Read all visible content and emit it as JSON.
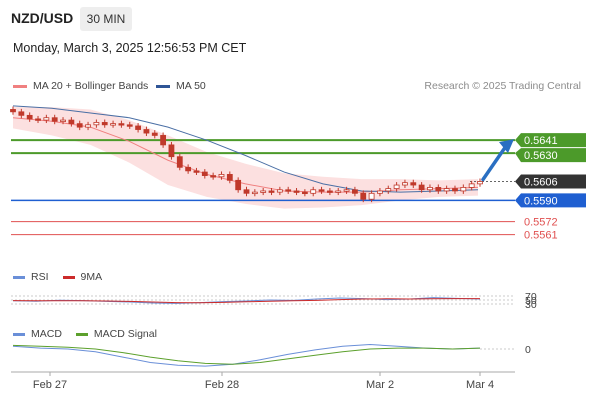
{
  "header": {
    "symbol": "NZD/USD",
    "timeframe": "30 MIN",
    "datetime": "Monday, March 3, 2025 12:56:53 PM CET"
  },
  "legend": {
    "ma20_bb": "MA 20 + Bollinger Bands",
    "ma50": "MA 50",
    "copyright": "Research © 2025 Trading Central"
  },
  "colors": {
    "candle": "#c0392b",
    "bollinger": "#fbd5d5",
    "ma20": "#f08080",
    "ma50": "#4a6fa5",
    "resistance": "#4c9a2a",
    "support_blue": "#1f5fd1",
    "support_red": "#e05050",
    "current": "#333333",
    "rsi": "#6a8fd8",
    "rsi_ma": "#cc2b2b",
    "macd": "#6a8fd8",
    "macd_signal": "#5ca02c",
    "arrow": "#2a6fc2"
  },
  "chart_data": [
    {
      "type": "candlestick",
      "title": "NZD/USD 30 MIN",
      "x_labels": [
        "Feb 27",
        "Feb 28",
        "Mar 2",
        "Mar 4"
      ],
      "price_range": [
        0.5548,
        0.5675
      ],
      "levels": [
        {
          "label": "0.5641",
          "value": 0.5641,
          "kind": "resistance"
        },
        {
          "label": "0.5630",
          "value": 0.563,
          "kind": "resistance"
        },
        {
          "label": "0.5606",
          "value": 0.5606,
          "kind": "current"
        },
        {
          "label": "0.5590",
          "value": 0.559,
          "kind": "pivot"
        },
        {
          "label": "0.5572",
          "value": 0.5572,
          "kind": "support"
        },
        {
          "label": "0.5561",
          "value": 0.5561,
          "kind": "support"
        }
      ],
      "close": [
        0.5665,
        0.5662,
        0.5659,
        0.5658,
        0.566,
        0.5657,
        0.5658,
        0.5655,
        0.5652,
        0.5654,
        0.5656,
        0.5654,
        0.5655,
        0.5654,
        0.5653,
        0.565,
        0.5647,
        0.5645,
        0.5637,
        0.5627,
        0.5618,
        0.5615,
        0.5614,
        0.5611,
        0.561,
        0.5612,
        0.5607,
        0.5599,
        0.5596,
        0.5597,
        0.5598,
        0.5597,
        0.5599,
        0.5598,
        0.5597,
        0.5596,
        0.5599,
        0.5598,
        0.5597,
        0.5598,
        0.5599,
        0.5596,
        0.5591,
        0.5596,
        0.5598,
        0.56,
        0.5603,
        0.5605,
        0.5603,
        0.5599,
        0.5601,
        0.5598,
        0.56,
        0.5598,
        0.5601,
        0.5604,
        0.5606
      ],
      "series": [
        {
          "name": "MA 50",
          "values": [
            0.567,
            0.5668,
            0.5664,
            0.566,
            0.5652,
            0.5641,
            0.5628,
            0.5614,
            0.5604,
            0.5598,
            0.5597,
            0.5598,
            0.5599
          ]
        },
        {
          "name": "MA 20",
          "values": [
            0.566,
            0.5657,
            0.5652,
            0.564,
            0.5624,
            0.5612,
            0.5604,
            0.5598,
            0.5597,
            0.5597,
            0.5599,
            0.56,
            0.5601
          ]
        }
      ]
    },
    {
      "type": "line",
      "title": "RSI",
      "y_ticks": [
        70,
        50,
        30
      ],
      "series": [
        {
          "name": "RSI",
          "values": [
            46,
            44,
            49,
            47,
            43,
            40,
            35,
            33,
            37,
            42,
            45,
            50,
            48,
            55,
            60,
            57,
            52,
            55,
            62,
            58,
            55
          ]
        },
        {
          "name": "9MA",
          "values": [
            47,
            46,
            46,
            46,
            45,
            43,
            40,
            37,
            36,
            38,
            41,
            44,
            46,
            48,
            52,
            55,
            56,
            55,
            56,
            57,
            57
          ]
        }
      ]
    },
    {
      "type": "line",
      "title": "MACD",
      "y_ticks": [
        0
      ],
      "series": [
        {
          "name": "MACD",
          "values": [
            0.3,
            0.1,
            0.0,
            -0.3,
            -0.9,
            -1.5,
            -1.8,
            -1.9,
            -1.7,
            -1.2,
            -0.6,
            -0.1,
            0.3,
            0.5,
            0.3,
            0.1,
            0.0,
            0.1
          ]
        },
        {
          "name": "MACD Signal",
          "values": [
            0.4,
            0.3,
            0.2,
            0.0,
            -0.4,
            -0.9,
            -1.3,
            -1.6,
            -1.7,
            -1.5,
            -1.1,
            -0.7,
            -0.3,
            0.0,
            0.1,
            0.1,
            0.0,
            0.1
          ]
        }
      ]
    }
  ],
  "indicators": {
    "rsi_label": "RSI",
    "rsi_ma_label": "9MA",
    "macd_label": "MACD",
    "macd_signal_label": "MACD Signal"
  }
}
